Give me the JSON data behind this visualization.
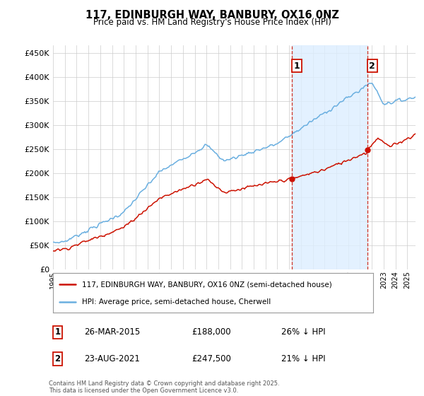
{
  "title": "117, EDINBURGH WAY, BANBURY, OX16 0NZ",
  "subtitle": "Price paid vs. HM Land Registry's House Price Index (HPI)",
  "ytick_values": [
    0,
    50000,
    100000,
    150000,
    200000,
    250000,
    300000,
    350000,
    400000,
    450000
  ],
  "ylim": [
    0,
    465000
  ],
  "xlim_start": 1995.0,
  "xlim_end": 2025.7,
  "hpi_color": "#6aafe0",
  "price_color": "#cc1100",
  "shade_color": "#ddeeff",
  "marker1_x": 2015.23,
  "marker2_x": 2021.62,
  "marker1_price": 188000,
  "marker2_price": 247500,
  "legend_text_red": "117, EDINBURGH WAY, BANBURY, OX16 0NZ (semi-detached house)",
  "legend_text_blue": "HPI: Average price, semi-detached house, Cherwell",
  "note1_date": "26-MAR-2015",
  "note1_price": "£188,000",
  "note1_hpi": "26% ↓ HPI",
  "note2_date": "23-AUG-2021",
  "note2_price": "£247,500",
  "note2_hpi": "21% ↓ HPI",
  "copyright": "Contains HM Land Registry data © Crown copyright and database right 2025.\nThis data is licensed under the Open Government Licence v3.0.",
  "background_color": "#ffffff",
  "grid_color": "#cccccc"
}
